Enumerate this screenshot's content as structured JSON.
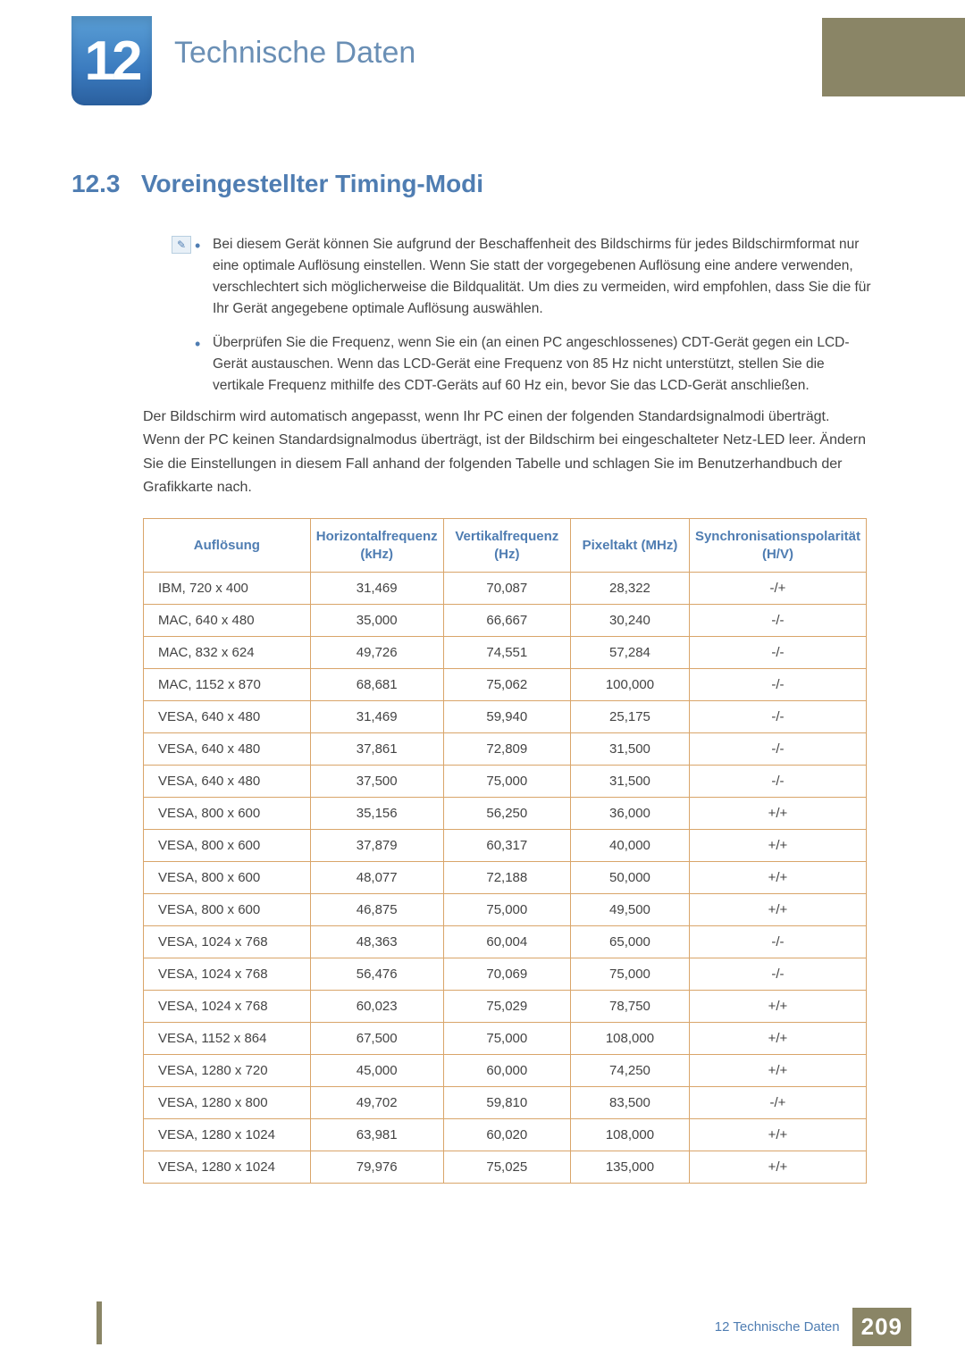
{
  "colors": {
    "accent_blue": "#4f7db2",
    "accent_olive": "#8a8566",
    "table_border": "#d9a56a",
    "text": "#444444",
    "bg": "#ffffff"
  },
  "header": {
    "chapter_number": "12",
    "chapter_title": "Technische Daten"
  },
  "section": {
    "number": "12.3",
    "title": "Voreingestellter Timing-Modi"
  },
  "note": {
    "bullets": [
      "Bei diesem Gerät können Sie aufgrund der Beschaffenheit des Bildschirms für jedes Bildschirmformat nur eine optimale Auflösung einstellen. Wenn Sie statt der vorgegebenen Auflösung eine andere verwenden, verschlechtert sich möglicherweise die Bildqualität. Um dies zu vermeiden, wird empfohlen, dass Sie die für Ihr Gerät angegebene optimale Auflösung auswählen.",
      "Überprüfen Sie die Frequenz, wenn Sie ein (an einen PC angeschlossenes) CDT-Gerät gegen ein LCD-Gerät austauschen. Wenn das LCD-Gerät eine Frequenz von 85 Hz nicht unterstützt, stellen Sie die vertikale Frequenz mithilfe des CDT-Geräts auf 60 Hz ein, bevor Sie das LCD-Gerät anschließen."
    ]
  },
  "paragraph": "Der Bildschirm wird automatisch angepasst, wenn Ihr PC einen der folgenden Standardsignalmodi überträgt. Wenn der PC keinen Standardsignalmodus überträgt, ist der Bildschirm bei eingeschalteter Netz-LED leer. Ändern Sie die Einstellungen in diesem Fall anhand der folgenden Tabelle und schlagen Sie im Benutzerhandbuch der Grafikkarte nach.",
  "table": {
    "type": "table",
    "column_widths_percent": [
      26,
      18,
      18,
      18,
      20
    ],
    "header_text_color": "#4f7db2",
    "border_color": "#d9a56a",
    "header_fontsize": 15,
    "cell_fontsize": 15,
    "columns": [
      "Auflösung",
      "Horizontalfrequenz (kHz)",
      "Vertikalfrequenz (Hz)",
      "Pixeltakt (MHz)",
      "Synchronisationspolarität (H/V)"
    ],
    "rows": [
      [
        "IBM, 720 x 400",
        "31,469",
        "70,087",
        "28,322",
        "-/+"
      ],
      [
        "MAC, 640 x 480",
        "35,000",
        "66,667",
        "30,240",
        "-/-"
      ],
      [
        "MAC, 832 x 624",
        "49,726",
        "74,551",
        "57,284",
        "-/-"
      ],
      [
        "MAC, 1152 x 870",
        "68,681",
        "75,062",
        "100,000",
        "-/-"
      ],
      [
        "VESA, 640 x 480",
        "31,469",
        "59,940",
        "25,175",
        "-/-"
      ],
      [
        "VESA, 640 x 480",
        "37,861",
        "72,809",
        "31,500",
        "-/-"
      ],
      [
        "VESA, 640 x 480",
        "37,500",
        "75,000",
        "31,500",
        "-/-"
      ],
      [
        "VESA, 800 x 600",
        "35,156",
        "56,250",
        "36,000",
        "+/+"
      ],
      [
        "VESA, 800 x 600",
        "37,879",
        "60,317",
        "40,000",
        "+/+"
      ],
      [
        "VESA, 800 x 600",
        "48,077",
        "72,188",
        "50,000",
        "+/+"
      ],
      [
        "VESA, 800 x 600",
        "46,875",
        "75,000",
        "49,500",
        "+/+"
      ],
      [
        "VESA, 1024 x 768",
        "48,363",
        "60,004",
        "65,000",
        "-/-"
      ],
      [
        "VESA, 1024 x 768",
        "56,476",
        "70,069",
        "75,000",
        "-/-"
      ],
      [
        "VESA, 1024 x 768",
        "60,023",
        "75,029",
        "78,750",
        "+/+"
      ],
      [
        "VESA, 1152 x 864",
        "67,500",
        "75,000",
        "108,000",
        "+/+"
      ],
      [
        "VESA, 1280 x 720",
        "45,000",
        "60,000",
        "74,250",
        "+/+"
      ],
      [
        "VESA, 1280 x 800",
        "49,702",
        "59,810",
        "83,500",
        "-/+"
      ],
      [
        "VESA, 1280 x 1024",
        "63,981",
        "60,020",
        "108,000",
        "+/+"
      ],
      [
        "VESA, 1280 x 1024",
        "79,976",
        "75,025",
        "135,000",
        "+/+"
      ]
    ]
  },
  "footer": {
    "text": "12 Technische Daten",
    "page": "209"
  }
}
